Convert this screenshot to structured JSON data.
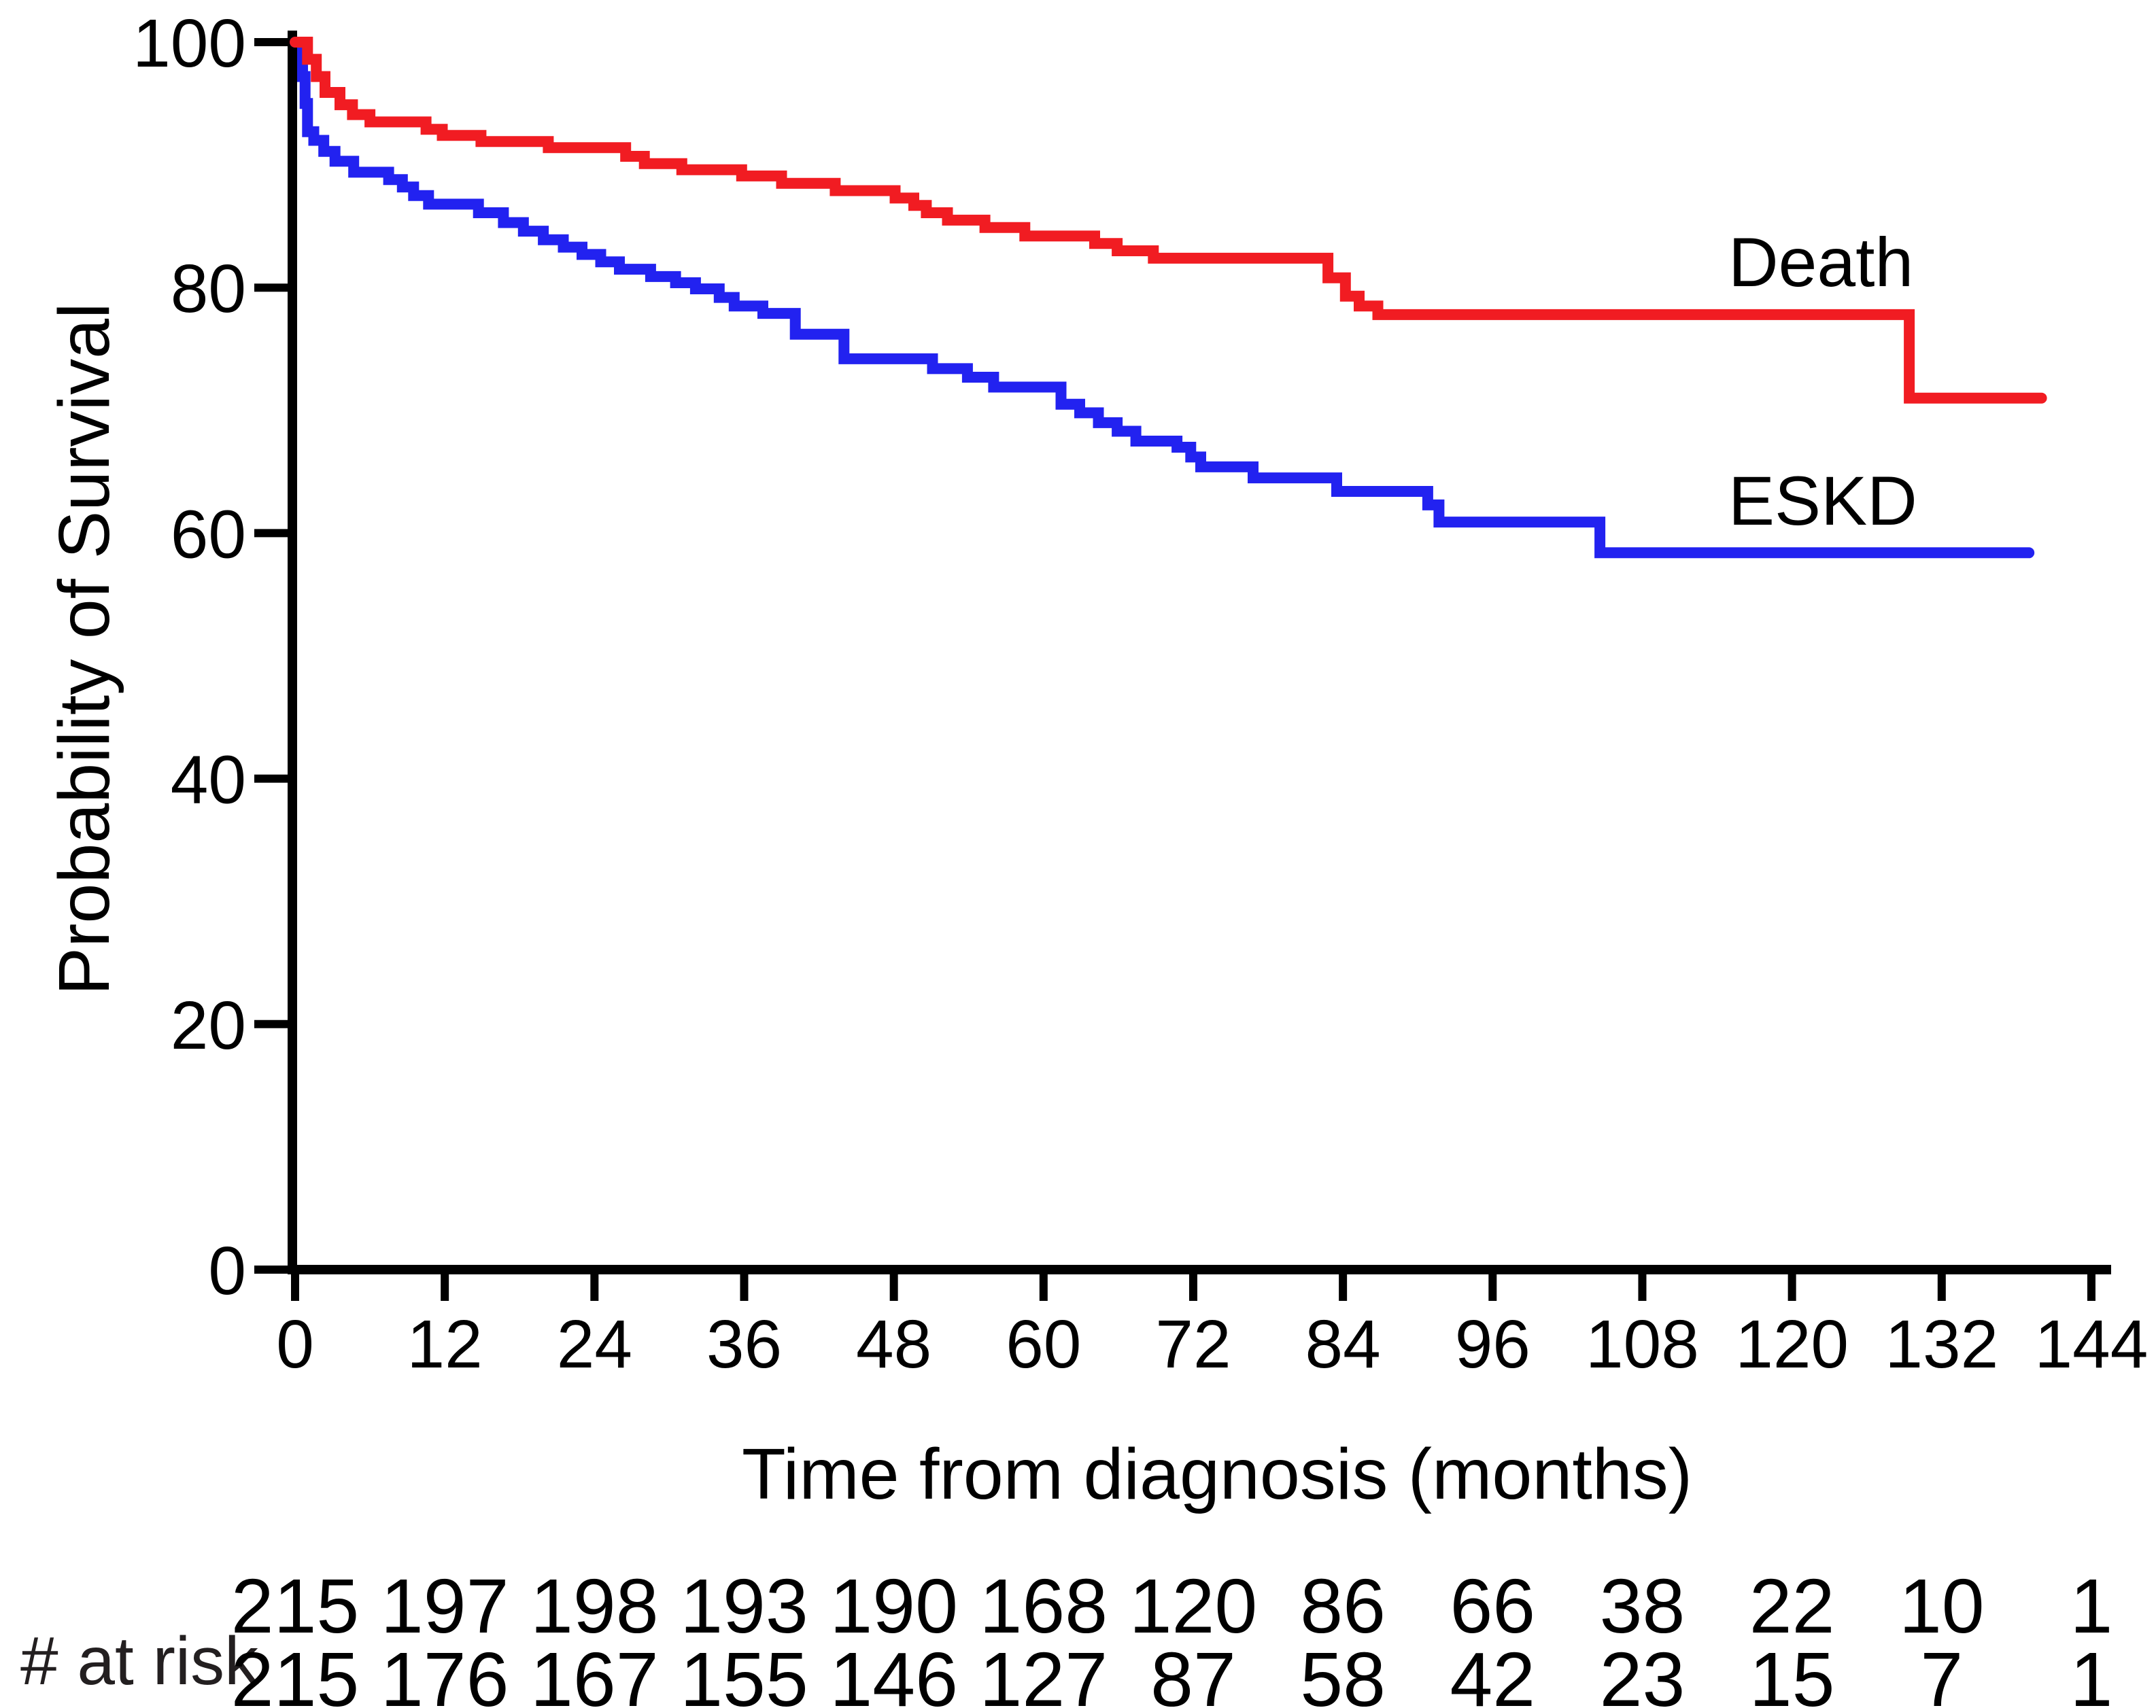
{
  "chart_data": {
    "type": "line",
    "subtype": "kaplan-meier-step",
    "title": "",
    "xlabel": "Time from diagnosis (months)",
    "ylabel": "Probability of Survival",
    "xlim": [
      0,
      144
    ],
    "ylim": [
      0,
      100
    ],
    "x_ticks": [
      0,
      12,
      24,
      36,
      48,
      60,
      72,
      84,
      96,
      108,
      120,
      132,
      144
    ],
    "y_ticks": [
      0,
      20,
      40,
      60,
      80,
      100
    ],
    "grid": false,
    "legend_position": "inline-right-of-curves",
    "series": [
      {
        "name": "Death",
        "color": "#f11c22",
        "end_t": 140.0,
        "steps": [
          [
            0,
            100
          ],
          [
            1.0,
            98.6
          ],
          [
            1.7,
            97.2
          ],
          [
            2.4,
            95.9
          ],
          [
            3.6,
            94.9
          ],
          [
            4.6,
            94.1
          ],
          [
            6.0,
            93.5
          ],
          [
            10.5,
            92.9
          ],
          [
            11.8,
            92.4
          ],
          [
            14.9,
            91.9
          ],
          [
            20.3,
            91.4
          ],
          [
            26.5,
            90.7
          ],
          [
            28.0,
            90.1
          ],
          [
            31.0,
            89.6
          ],
          [
            35.8,
            89.1
          ],
          [
            39.0,
            88.5
          ],
          [
            43.3,
            87.9
          ],
          [
            48.1,
            87.3
          ],
          [
            49.6,
            86.7
          ],
          [
            50.6,
            86.1
          ],
          [
            52.3,
            85.5
          ],
          [
            55.3,
            84.9
          ],
          [
            58.5,
            84.2
          ],
          [
            64.1,
            83.6
          ],
          [
            65.9,
            83.0
          ],
          [
            68.8,
            82.4
          ],
          [
            82.8,
            80.8
          ],
          [
            84.2,
            79.3
          ],
          [
            85.3,
            78.5
          ],
          [
            86.8,
            77.8
          ],
          [
            129.4,
            71.0
          ]
        ]
      },
      {
        "name": "ESKD",
        "color": "#2222f0",
        "end_t": 139.0,
        "steps": [
          [
            0,
            100
          ],
          [
            0.6,
            97.2
          ],
          [
            0.8,
            95.0
          ],
          [
            1.0,
            92.7
          ],
          [
            1.5,
            92.0
          ],
          [
            2.3,
            91.1
          ],
          [
            3.2,
            90.3
          ],
          [
            4.7,
            89.4
          ],
          [
            7.5,
            88.8
          ],
          [
            8.6,
            88.2
          ],
          [
            9.5,
            87.5
          ],
          [
            10.7,
            86.8
          ],
          [
            14.7,
            86.1
          ],
          [
            16.7,
            85.3
          ],
          [
            18.3,
            84.6
          ],
          [
            19.9,
            83.9
          ],
          [
            21.5,
            83.3
          ],
          [
            23.0,
            82.7
          ],
          [
            24.5,
            82.1
          ],
          [
            26.0,
            81.5
          ],
          [
            28.5,
            80.9
          ],
          [
            30.5,
            80.4
          ],
          [
            32.1,
            79.9
          ],
          [
            34.0,
            79.2
          ],
          [
            35.2,
            78.5
          ],
          [
            37.5,
            77.9
          ],
          [
            40.1,
            76.2
          ],
          [
            44.0,
            74.2
          ],
          [
            51.1,
            73.4
          ],
          [
            53.9,
            72.7
          ],
          [
            56.0,
            71.9
          ],
          [
            61.4,
            70.5
          ],
          [
            62.9,
            69.8
          ],
          [
            64.4,
            69.0
          ],
          [
            65.9,
            68.3
          ],
          [
            67.4,
            67.5
          ],
          [
            70.7,
            67.0
          ],
          [
            71.8,
            66.2
          ],
          [
            72.6,
            65.4
          ],
          [
            76.8,
            64.5
          ],
          [
            83.5,
            63.4
          ],
          [
            90.8,
            62.3
          ],
          [
            91.7,
            60.9
          ],
          [
            104.6,
            58.4
          ]
        ]
      }
    ],
    "risk_table": {
      "label": "# at risk",
      "times": [
        0,
        12,
        24,
        36,
        48,
        60,
        72,
        84,
        96,
        108,
        120,
        132,
        144
      ],
      "rows": [
        {
          "name": "Death",
          "color": "#f11c22",
          "values": [
            215,
            197,
            198,
            193,
            190,
            168,
            120,
            86,
            66,
            38,
            22,
            10,
            1
          ]
        },
        {
          "name": "ESKD",
          "color": "#2222f0",
          "values": [
            215,
            176,
            167,
            155,
            146,
            127,
            87,
            58,
            42,
            23,
            15,
            7,
            1
          ]
        }
      ]
    }
  }
}
